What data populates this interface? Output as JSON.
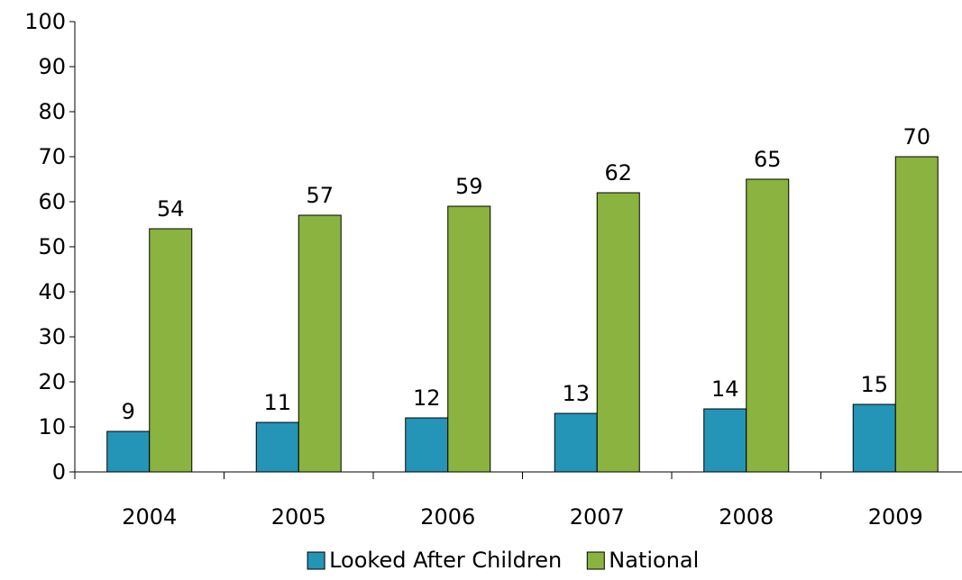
{
  "chart_data": {
    "type": "bar",
    "categories": [
      "2004",
      "2005",
      "2006",
      "2007",
      "2008",
      "2009"
    ],
    "series": [
      {
        "name": "Looked After Children",
        "color": "#2494b7",
        "values": [
          9,
          11,
          12,
          13,
          14,
          15
        ]
      },
      {
        "name": "National",
        "color": "#8ab33f",
        "values": [
          54,
          57,
          59,
          62,
          65,
          70
        ]
      }
    ],
    "data_labels": {
      "Looked After Children": [
        "9",
        "11",
        "12",
        "13",
        "14",
        "15"
      ],
      "National": [
        "54",
        "57",
        "59",
        "62",
        "65",
        "70"
      ]
    },
    "y_ticks": [
      "0",
      "10",
      "20",
      "30",
      "40",
      "50",
      "60",
      "70",
      "80",
      "90",
      "100"
    ],
    "ylim": [
      0,
      100
    ],
    "title": "",
    "xlabel": "",
    "ylabel": "",
    "grid": false,
    "legend_position": "bottom"
  }
}
